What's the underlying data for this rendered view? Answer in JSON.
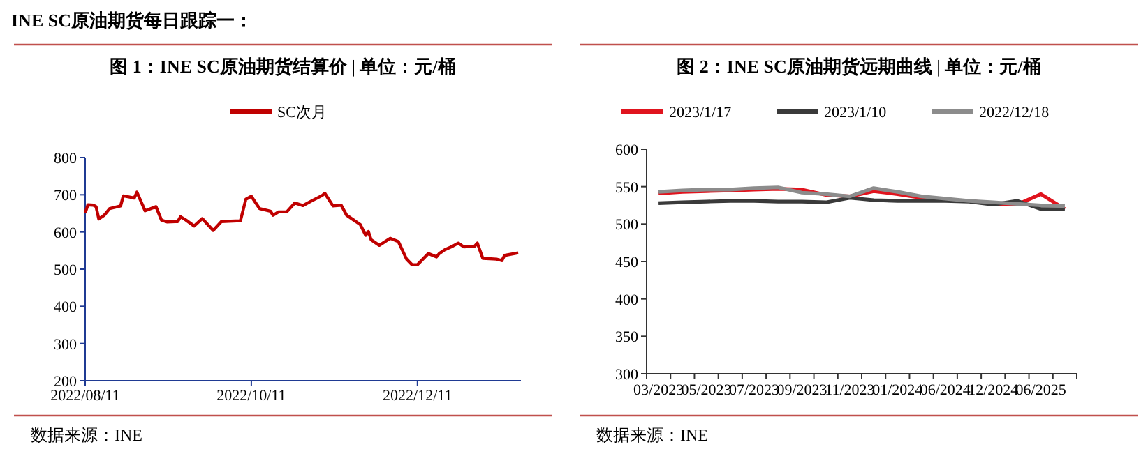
{
  "chart_data": [
    {
      "type": "line",
      "title": "图 1：INE SC原油期货结算价 | 单位：元/桶",
      "annotations": [
        "INE SC原油期货每日跟踪一：",
        "数据来源：INE"
      ],
      "legend": "top",
      "xlim": [
        "2022-08-11",
        "2023-01-18"
      ],
      "xticks": [
        {
          "value": "2022-08-11",
          "label": "2022/08/11"
        },
        {
          "value": "2022-10-11",
          "label": "2022/10/11"
        },
        {
          "value": "2022-12-11",
          "label": "2022/12/11"
        }
      ],
      "ylim": [
        200,
        800
      ],
      "yticks": [
        200,
        300,
        400,
        500,
        600,
        700,
        800
      ],
      "x": [
        "2022-08-11",
        "2022-08-12",
        "2022-08-14",
        "2022-08-15",
        "2022-08-16",
        "2022-08-18",
        "2022-08-20",
        "2022-08-24",
        "2022-08-25",
        "2022-08-28",
        "2022-08-29",
        "2022-08-30",
        "2022-09-02",
        "2022-09-06",
        "2022-09-08",
        "2022-09-10",
        "2022-09-13",
        "2022-09-14",
        "2022-09-15",
        "2022-09-17",
        "2022-09-20",
        "2022-09-23",
        "2022-09-27",
        "2022-09-30",
        "2022-10-07",
        "2022-10-09",
        "2022-10-11",
        "2022-10-14",
        "2022-10-18",
        "2022-10-19",
        "2022-10-21",
        "2022-10-24",
        "2022-10-27",
        "2022-10-30",
        "2022-11-02",
        "2022-11-06",
        "2022-11-07",
        "2022-11-10",
        "2022-11-13",
        "2022-11-15",
        "2022-11-20",
        "2022-11-22",
        "2022-11-23",
        "2022-11-24",
        "2022-11-27",
        "2022-12-01",
        "2022-12-04",
        "2022-12-07",
        "2022-12-09",
        "2022-12-11",
        "2022-12-15",
        "2022-12-18",
        "2022-12-19",
        "2022-12-21",
        "2022-12-24",
        "2022-12-26",
        "2022-12-28",
        "2023-01-01",
        "2023-01-02",
        "2023-01-04",
        "2023-01-09",
        "2023-01-11",
        "2023-01-12",
        "2023-01-17"
      ],
      "series": [
        {
          "name": "SC次月",
          "color": "#c00000",
          "values": [
            651,
            673,
            672,
            668,
            635,
            645,
            663,
            670,
            697,
            693,
            691,
            707,
            657,
            668,
            632,
            627,
            628,
            628,
            641,
            632,
            616,
            636,
            604,
            628,
            630,
            688,
            696,
            663,
            656,
            645,
            654,
            654,
            678,
            671,
            683,
            698,
            704,
            670,
            672,
            645,
            620,
            591,
            601,
            579,
            564,
            583,
            574,
            527,
            512,
            512,
            542,
            533,
            542,
            552,
            562,
            570,
            560,
            562,
            570,
            529,
            527,
            523,
            537,
            544
          ]
        }
      ]
    },
    {
      "type": "line",
      "title": "图 2：INE SC原油期货远期曲线 | 单位：元/桶",
      "annotations": [
        "数据来源：INE"
      ],
      "legend": "top",
      "ylim": [
        300,
        600
      ],
      "yticks": [
        300,
        350,
        400,
        450,
        500,
        550,
        600
      ],
      "categories": [
        "03/2023",
        null,
        "05/2023",
        null,
        "07/2023",
        null,
        "09/2023",
        null,
        "11/2023",
        null,
        "01/2024",
        null,
        "06/2024",
        null,
        "12/2024",
        null,
        "06/2025",
        null
      ],
      "series": [
        {
          "name": "2023/1/17",
          "color": "#e0141e",
          "values": [
            541,
            543,
            544,
            545,
            546,
            547,
            546,
            539,
            537,
            544,
            540,
            535,
            532,
            531,
            527,
            526,
            540,
            520
          ]
        },
        {
          "name": "2023/1/10",
          "color": "#3a3a3a",
          "values": [
            528,
            529,
            530,
            531,
            531,
            530,
            530,
            529,
            535,
            532,
            531,
            531,
            531,
            530,
            526,
            531,
            520,
            520
          ]
        },
        {
          "name": "2022/12/18",
          "color": "#8c8c8c",
          "values": [
            543,
            545,
            546,
            546,
            548,
            549,
            542,
            540,
            537,
            548,
            543,
            537,
            534,
            531,
            529,
            527,
            525,
            524
          ]
        }
      ]
    }
  ]
}
